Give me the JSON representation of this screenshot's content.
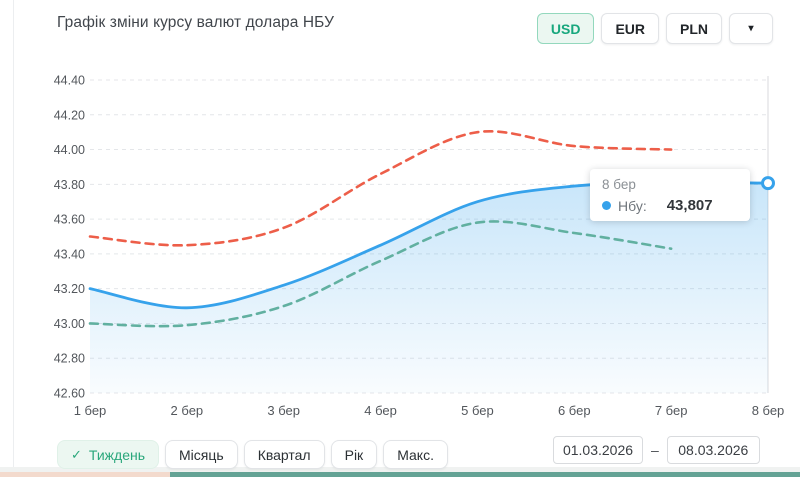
{
  "header": {
    "currency_tabs": [
      {
        "label": "USD",
        "active": true
      },
      {
        "label": "EUR",
        "active": false
      },
      {
        "label": "PLN",
        "active": false
      }
    ],
    "dropdown_caret": "▾"
  },
  "chart_data": {
    "type": "line",
    "title": "Графік зміни курсу валют долара НБУ",
    "categories": [
      "1 бер",
      "2 бер",
      "3 бер",
      "4 бер",
      "5 бер",
      "6 бер",
      "7 бер",
      "8 бер"
    ],
    "y_ticks": [
      "44.40",
      "44.20",
      "44.00",
      "43.80",
      "43.60",
      "43.40",
      "43.20",
      "43.00",
      "42.80",
      "42.60"
    ],
    "ylim": [
      42.6,
      44.4
    ],
    "grid": true,
    "legend_position": "none",
    "series": [
      {
        "id": "red-dashed-upper",
        "style": "dashed",
        "color": "#ed5e49",
        "values": [
          43.5,
          43.45,
          43.55,
          43.86,
          44.1,
          44.02,
          44.0
        ]
      },
      {
        "id": "teal-dashed-lower",
        "style": "dashed",
        "color": "#61b0a0",
        "values": [
          43.0,
          42.99,
          43.1,
          43.36,
          43.58,
          43.52,
          43.43
        ]
      },
      {
        "id": "nbu",
        "name": "Нбу",
        "style": "solid",
        "area": true,
        "end_marker": true,
        "color": "#36a2eb",
        "values": [
          43.2,
          43.09,
          43.22,
          43.45,
          43.7,
          43.79,
          43.81,
          43.807
        ]
      }
    ]
  },
  "tooltip": {
    "date": "8 бер",
    "series_label": "Нбу:",
    "value": "43,807"
  },
  "controls": {
    "periods": [
      {
        "label": "Тиждень",
        "active": true,
        "check": "✓"
      },
      {
        "label": "Місяць",
        "active": false
      },
      {
        "label": "Квартал",
        "active": false
      },
      {
        "label": "Рік",
        "active": false
      },
      {
        "label": "Макс.",
        "active": false
      }
    ],
    "date_from": "01.03.2026",
    "date_separator": "–",
    "date_to": "08.03.2026"
  },
  "colors": {
    "nbu_line": "#36a2eb",
    "upper_dashed_line": "#ed5e49",
    "lower_dashed_line": "#61b0a0",
    "active_green": "#2aa77b",
    "active_green_bg": "#ecf7f1",
    "grid": "#e4e6e9",
    "axis_text": "#53575c"
  }
}
